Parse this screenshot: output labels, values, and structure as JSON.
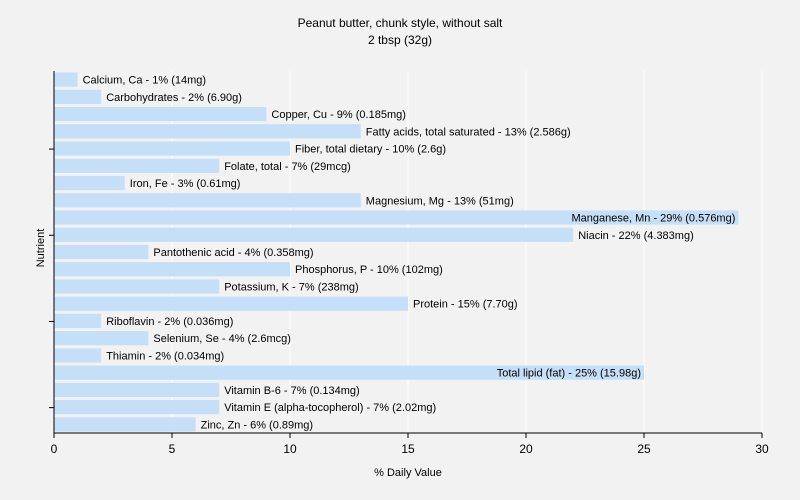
{
  "chart_data": {
    "type": "bar",
    "orientation": "horizontal",
    "title": "Peanut butter, chunk style, without salt",
    "subtitle": "2 tbsp (32g)",
    "xlabel": "% Daily Value",
    "ylabel": "Nutrient",
    "xlim": [
      0,
      30
    ],
    "xticks": [
      0,
      5,
      10,
      15,
      20,
      25,
      30
    ],
    "grid": true,
    "bar_color": "#c6dff8",
    "categories": [
      "Calcium, Ca",
      "Carbohydrates",
      "Copper, Cu",
      "Fatty acids, total saturated",
      "Fiber, total dietary",
      "Folate, total",
      "Iron, Fe",
      "Magnesium, Mg",
      "Manganese, Mn",
      "Niacin",
      "Pantothenic acid",
      "Phosphorus, P",
      "Potassium, K",
      "Protein",
      "Riboflavin",
      "Selenium, Se",
      "Thiamin",
      "Total lipid (fat)",
      "Vitamin B-6",
      "Vitamin E (alpha-tocopherol)",
      "Zinc, Zn"
    ],
    "values": [
      1,
      2,
      9,
      13,
      10,
      7,
      3,
      13,
      29,
      22,
      4,
      10,
      7,
      15,
      2,
      4,
      2,
      25,
      7,
      7,
      6
    ],
    "labels": [
      "Calcium, Ca - 1% (14mg)",
      "Carbohydrates - 2% (6.90g)",
      "Copper, Cu - 9% (0.185mg)",
      "Fatty acids, total saturated - 13% (2.586g)",
      "Fiber, total dietary - 10% (2.6g)",
      "Folate, total - 7% (29mcg)",
      "Iron, Fe - 3% (0.61mg)",
      "Magnesium, Mg - 13% (51mg)",
      "Manganese, Mn - 29% (0.576mg)",
      "Niacin - 22% (4.383mg)",
      "Pantothenic acid - 4% (0.358mg)",
      "Phosphorus, P - 10% (102mg)",
      "Potassium, K - 7% (238mg)",
      "Protein - 15% (7.70g)",
      "Riboflavin - 2% (0.036mg)",
      "Selenium, Se - 4% (2.6mcg)",
      "Thiamin - 2% (0.034mg)",
      "Total lipid (fat) - 25% (15.98g)",
      "Vitamin B-6 - 7% (0.134mg)",
      "Vitamin E (alpha-tocopherol) - 7% (2.02mg)",
      "Zinc, Zn - 6% (0.89mg)"
    ]
  }
}
